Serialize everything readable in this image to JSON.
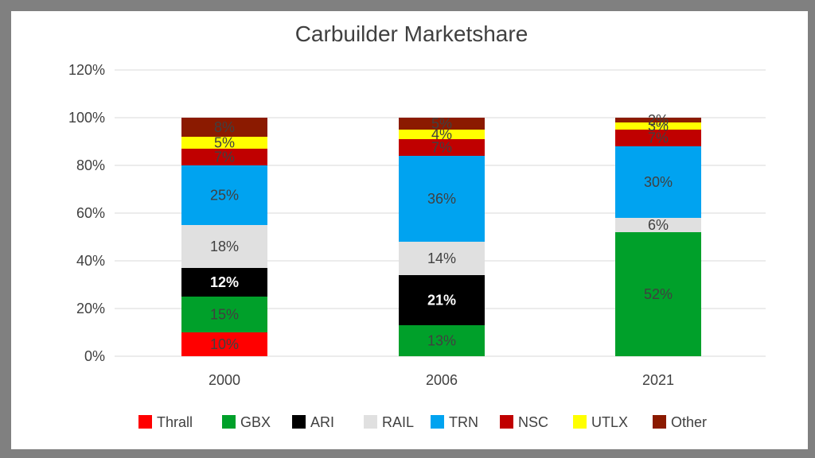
{
  "chart_data": {
    "type": "bar",
    "stacked": true,
    "title": "Carbuilder Marketshare",
    "xlabel": "",
    "ylabel": "",
    "ylim": [
      0,
      1.2
    ],
    "yticks": [
      0,
      0.2,
      0.4,
      0.6,
      0.8,
      1.0,
      1.2
    ],
    "ytick_labels": [
      "0%",
      "20%",
      "40%",
      "60%",
      "80%",
      "100%",
      "120%"
    ],
    "grid": true,
    "legend_position": "bottom",
    "categories": [
      "2000",
      "2006",
      "2021"
    ],
    "series": [
      {
        "name": "Thrall",
        "color": "#ff0000",
        "values": [
          0.1,
          0,
          0
        ],
        "labels": [
          "10%",
          "",
          ""
        ],
        "label_color": "#404040"
      },
      {
        "name": "GBX",
        "color": "#00a02a",
        "values": [
          0.15,
          0.13,
          0.52
        ],
        "labels": [
          "15%",
          "13%",
          "52%"
        ],
        "label_color": "#404040"
      },
      {
        "name": "ARI",
        "color": "#000000",
        "values": [
          0.12,
          0.21,
          0
        ],
        "labels": [
          "12%",
          "21%",
          ""
        ],
        "label_color": "#ffffff",
        "label_bold": true
      },
      {
        "name": "RAIL",
        "color": "#e0e0e0",
        "values": [
          0.18,
          0.14,
          0.06
        ],
        "labels": [
          "18%",
          "14%",
          "6%"
        ],
        "label_color": "#404040"
      },
      {
        "name": "TRN",
        "color": "#00a3f0",
        "values": [
          0.25,
          0.36,
          0.3
        ],
        "labels": [
          "25%",
          "36%",
          "30%"
        ],
        "label_color": "#404040"
      },
      {
        "name": "NSC",
        "color": "#c00000",
        "values": [
          0.07,
          0.07,
          0.07
        ],
        "labels": [
          "7%",
          "7%",
          "7%"
        ],
        "label_color": "#404040"
      },
      {
        "name": "UTLX",
        "color": "#ffff00",
        "values": [
          0.05,
          0.04,
          0.03
        ],
        "labels": [
          "5%",
          "4%",
          "3%"
        ],
        "label_color": "#404040"
      },
      {
        "name": "Other",
        "color": "#8b1a00",
        "values": [
          0.08,
          0.05,
          0.02
        ],
        "labels": [
          "8%",
          "5%",
          "2%"
        ],
        "label_color": "#404040"
      }
    ]
  }
}
